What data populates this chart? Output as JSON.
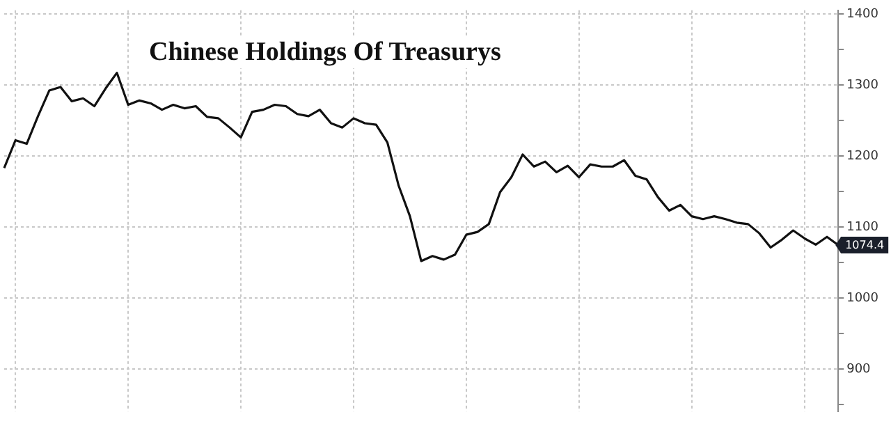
{
  "chart_data": {
    "type": "line",
    "title": "Chinese Holdings Of Treasurys",
    "categories": [
      null,
      null,
      null,
      null,
      null,
      null,
      null,
      null,
      null,
      null,
      null,
      null,
      null,
      null,
      null,
      null,
      null,
      null,
      null,
      null,
      null,
      null,
      null,
      null,
      null,
      null,
      null,
      null,
      null,
      null,
      null,
      null,
      null,
      null,
      null,
      null,
      null,
      null,
      null,
      null,
      null,
      null,
      null,
      null,
      null,
      null,
      null,
      null,
      null,
      null,
      null,
      null,
      null,
      null,
      null,
      null,
      null,
      null,
      null,
      null,
      null,
      null,
      null,
      null,
      null,
      null,
      null,
      null,
      null,
      null,
      null,
      null,
      null,
      null,
      null
    ],
    "series": [
      {
        "color": "#111111",
        "values": [
          1183,
          1222,
          1217,
          1256,
          1292,
          1297,
          1277,
          1281,
          1270,
          1295,
          1317,
          1272,
          1278,
          1274,
          1265,
          1272,
          1267,
          1270,
          1255,
          1253,
          1240,
          1226,
          1262,
          1265,
          1272,
          1270,
          1259,
          1256,
          1265,
          1246,
          1240,
          1253,
          1246,
          1244,
          1219,
          1158,
          1115,
          1052,
          1059,
          1054,
          1061,
          1089,
          1093,
          1104,
          1149,
          1170,
          1202,
          1185,
          1192,
          1177,
          1186,
          1170,
          1188,
          1185,
          1185,
          1194,
          1172,
          1167,
          1142,
          1123,
          1131,
          1115,
          1111,
          1115,
          1111,
          1106,
          1104,
          1091,
          1071,
          1082,
          1095,
          1084,
          1075,
          1086,
          1074.4
        ],
        "value_labels": [
          null,
          null,
          null,
          null,
          null,
          null,
          null,
          null,
          null,
          null,
          null,
          null,
          null,
          null,
          null,
          null,
          null,
          null,
          null,
          null,
          null,
          null,
          null,
          null,
          null,
          null,
          null,
          null,
          null,
          null,
          null,
          null,
          null,
          null,
          null,
          null,
          null,
          null,
          null,
          null,
          null,
          null,
          null,
          null,
          null,
          null,
          null,
          null,
          null,
          null,
          null,
          null,
          null,
          null,
          null,
          null,
          null,
          null,
          null,
          null,
          null,
          null,
          null,
          null,
          null,
          null,
          null,
          null,
          null,
          null,
          null,
          null,
          null,
          null,
          "1074.4"
        ]
      }
    ],
    "ylim": [
      840,
      1405
    ],
    "yticks": [
      {
        "value": 850,
        "label": null
      },
      900,
      {
        "value": 950,
        "label": null
      },
      1000,
      {
        "value": 1050,
        "label": null
      },
      1100,
      {
        "value": 1150,
        "label": null
      },
      1200,
      {
        "value": 1250,
        "label": null
      },
      1300,
      {
        "value": 1350,
        "label": null
      },
      1400
    ],
    "grid": true,
    "legend": false,
    "marker": "none",
    "line_style": "solid"
  }
}
